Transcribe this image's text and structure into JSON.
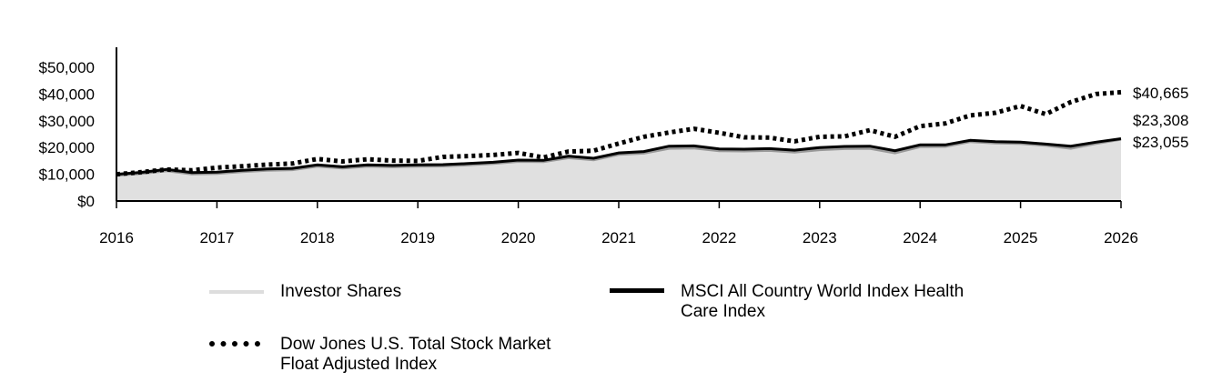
{
  "chart_data": {
    "type": "area",
    "title": "",
    "xlabel": "",
    "ylabel": "",
    "x_ticks": [
      "2016",
      "2017",
      "2018",
      "2019",
      "2020",
      "2021",
      "2022",
      "2023",
      "2024",
      "2025",
      "2026"
    ],
    "y_ticks": [
      "$0",
      "$10,000",
      "$20,000",
      "$30,000",
      "$40,000",
      "$50,000"
    ],
    "xlim": [
      2016,
      2026
    ],
    "ylim": [
      0,
      50000
    ],
    "x_frequency": "quarterly",
    "grid": false,
    "legend_position": "bottom",
    "series": [
      {
        "name": "Investor Shares",
        "style": "area",
        "color": "#e0e0e0",
        "stroke": "#999999",
        "end_label": "$23,055",
        "values": [
          9600,
          10300,
          11300,
          10100,
          10300,
          11000,
          11500,
          11700,
          13000,
          12300,
          13000,
          12800,
          13000,
          13100,
          13500,
          14000,
          14800,
          14700,
          16200,
          15400,
          17400,
          17900,
          19700,
          19800,
          18800,
          18700,
          18900,
          18300,
          19200,
          19600,
          19700,
          18000,
          20300,
          20400,
          22200,
          21700,
          21500,
          20800,
          19700,
          21500,
          23055
        ]
      },
      {
        "name": "MSCI All Country World Index Health Care Index",
        "style": "solid",
        "color": "#000000",
        "end_label": "$23,308",
        "values": [
          10000,
          10700,
          11800,
          10600,
          10800,
          11500,
          12000,
          12200,
          13500,
          12800,
          13500,
          13300,
          13500,
          13600,
          14000,
          14500,
          15300,
          15200,
          16800,
          16000,
          18000,
          18500,
          20500,
          20600,
          19500,
          19400,
          19600,
          19000,
          20000,
          20400,
          20500,
          18800,
          21000,
          21000,
          22700,
          22200,
          22000,
          21300,
          20500,
          22000,
          23308
        ]
      },
      {
        "name": "Dow Jones U.S. Total Stock Market Float Adjusted Index",
        "style": "dotted",
        "color": "#000000",
        "end_label": "$40,665",
        "values": [
          10000,
          10800,
          11800,
          11500,
          12500,
          13000,
          13600,
          14000,
          15700,
          14800,
          15600,
          15100,
          15000,
          16500,
          16800,
          17200,
          18000,
          16300,
          18500,
          18800,
          21500,
          24000,
          25600,
          27000,
          25500,
          23800,
          23700,
          22300,
          24000,
          24200,
          26500,
          24000,
          28000,
          29000,
          32000,
          33000,
          35500,
          32500,
          37000,
          40000,
          40665
        ]
      }
    ]
  },
  "legend": {
    "investor": "Investor Shares",
    "msci_line1": "MSCI All Country World Index Health",
    "msci_line2": "Care Index",
    "dow_line1": "Dow Jones U.S. Total Stock Market",
    "dow_line2": "Float Adjusted Index"
  }
}
